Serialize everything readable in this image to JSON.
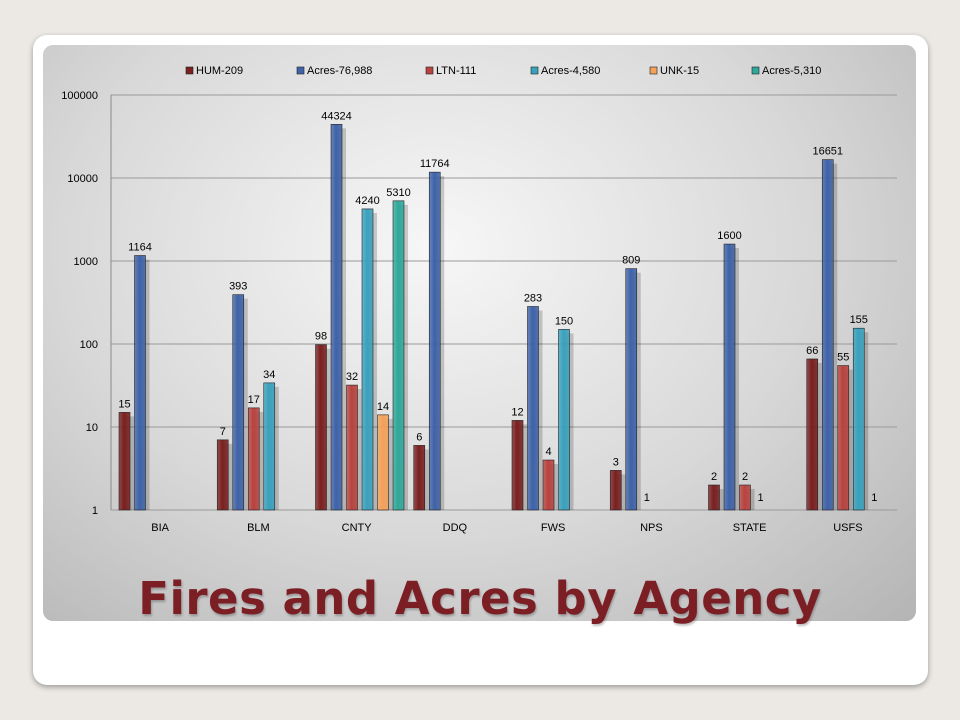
{
  "slide_title": "Fires and Acres by Agency",
  "chart_data": {
    "type": "bar",
    "scale": "log",
    "ylim": [
      1,
      100000
    ],
    "y_ticks": [
      "1",
      "10",
      "100",
      "1000",
      "10000",
      "100000"
    ],
    "categories": [
      "BIA",
      "BLM",
      "CNTY",
      "DDQ",
      "FWS",
      "NPS",
      "STATE",
      "USFS"
    ],
    "legend_position": "top",
    "series": [
      {
        "name": "HUM-209",
        "color": "#7a2020",
        "values": [
          15,
          7,
          98,
          6,
          12,
          3,
          2,
          66
        ]
      },
      {
        "name": "Acres-76,988",
        "color": "#3f63a8",
        "values": [
          1164,
          393,
          44324,
          11764,
          283,
          809,
          1600,
          16651
        ]
      },
      {
        "name": "LTN-111",
        "color": "#b8433f",
        "values": [
          null,
          17,
          32,
          null,
          4,
          null,
          2,
          55
        ]
      },
      {
        "name": "Acres-4,580",
        "color": "#3aa1bd",
        "values": [
          null,
          34,
          4240,
          null,
          150,
          null,
          null,
          155
        ]
      },
      {
        "name": "UNK-15",
        "color": "#f4a15a",
        "values": [
          null,
          null,
          14,
          null,
          null,
          null,
          null,
          null
        ]
      },
      {
        "name": "Acres-5,310",
        "color": "#2fa89a",
        "values": [
          null,
          null,
          5310,
          null,
          null,
          null,
          null,
          null
        ]
      }
    ],
    "extra_labels": [
      {
        "category": "NPS",
        "series": 2,
        "text": "1"
      },
      {
        "category": "STATE",
        "series": 3,
        "text": "1"
      },
      {
        "category": "USFS",
        "series": 4,
        "text": "1"
      }
    ]
  }
}
